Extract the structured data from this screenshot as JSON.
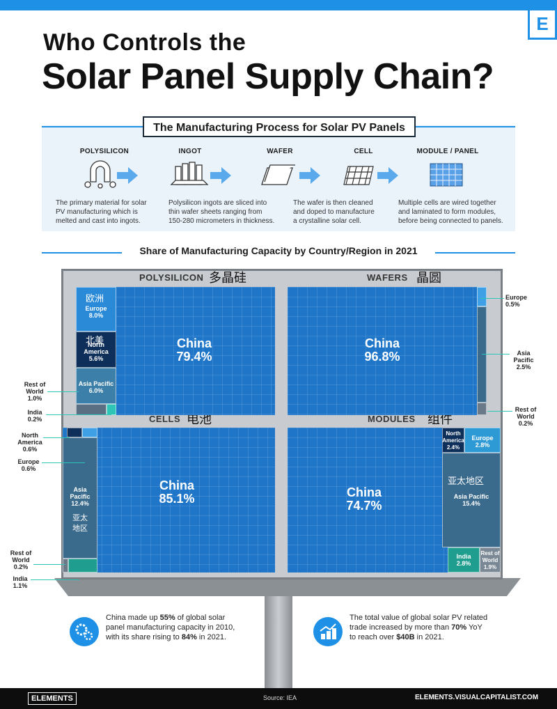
{
  "header": {
    "logo_letter": "E",
    "title_line1": "Who Controls the",
    "title_line2": "Solar Panel Supply Chain?"
  },
  "process": {
    "title": "The Manufacturing Process for Solar PV Panels",
    "steps": [
      {
        "label": "POLYSILICON",
        "desc1": "The primary material for solar",
        "desc2": "PV manufacturing which is",
        "desc3": "melted and cast into ingots."
      },
      {
        "label": "INGOT",
        "desc1": "Polysilicon ingots are sliced into",
        "desc2": "thin wafer sheets ranging from",
        "desc3": "150-280 micrometers in thickness."
      },
      {
        "label": "WAFER",
        "desc1": "The wafer is then cleaned",
        "desc2": "and doped to manufacture",
        "desc3": "a crystalline solar cell."
      },
      {
        "label": "CELL",
        "desc1": "",
        "desc2": "",
        "desc3": ""
      },
      {
        "label": "MODULE / PANEL",
        "desc1": "Multiple cells are wired together",
        "desc2": "and laminated to form modules,",
        "desc3": "before being connected to panels."
      }
    ]
  },
  "share_title": "Share of Manufacturing Capacity by Country/Region in 2021",
  "chart_data": [
    {
      "type": "treemap",
      "title": "POLYSILICON",
      "title_zh": "多晶硅",
      "items": [
        {
          "name": "China",
          "value": 79.4,
          "label": "79.4%"
        },
        {
          "name": "Europe",
          "value": 8.0,
          "label": "8.0%",
          "zh": "欧洲"
        },
        {
          "name": "North America",
          "value": 5.6,
          "label": "5.6%",
          "zh": "北美"
        },
        {
          "name": "Asia Pacific",
          "value": 6.0,
          "label": "6.0%"
        },
        {
          "name": "Rest of World",
          "value": 1.0,
          "label": "1.0%"
        },
        {
          "name": "India",
          "value": 0.2,
          "label": "0.2%"
        }
      ]
    },
    {
      "type": "treemap",
      "title": "WAFERS",
      "title_zh": "晶圆",
      "items": [
        {
          "name": "China",
          "value": 96.8,
          "label": "96.8%"
        },
        {
          "name": "Europe",
          "value": 0.5,
          "label": "0.5%"
        },
        {
          "name": "Asia Pacific",
          "value": 2.5,
          "label": "2.5%"
        },
        {
          "name": "Rest of World",
          "value": 0.2,
          "label": "0.2%"
        }
      ]
    },
    {
      "type": "treemap",
      "title": "CELLS",
      "title_zh": "电池",
      "items": [
        {
          "name": "China",
          "value": 85.1,
          "label": "85.1%"
        },
        {
          "name": "North America",
          "value": 0.6,
          "label": "0.6%"
        },
        {
          "name": "Europe",
          "value": 0.6,
          "label": "0.6%"
        },
        {
          "name": "Asia Pacific",
          "value": 12.4,
          "label": "12.4%",
          "zh": "亚太地区"
        },
        {
          "name": "Rest of World",
          "value": 0.2,
          "label": "0.2%"
        },
        {
          "name": "India",
          "value": 1.1,
          "label": "1.1%"
        }
      ]
    },
    {
      "type": "treemap",
      "title": "MODULES",
      "title_zh": "组件",
      "items": [
        {
          "name": "China",
          "value": 74.7,
          "label": "74.7%"
        },
        {
          "name": "North America",
          "value": 2.4,
          "label": "2.4%"
        },
        {
          "name": "Europe",
          "value": 2.8,
          "label": "2.8%"
        },
        {
          "name": "Asia Pacific",
          "value": 15.4,
          "label": "15.4%",
          "zh": "亚太地区"
        },
        {
          "name": "India",
          "value": 2.8,
          "label": "2.8%"
        },
        {
          "name": "Rest of World",
          "value": 1.9,
          "label": "1.9%"
        }
      ]
    }
  ],
  "labels": {
    "north_america_line1": "North",
    "north_america_line2": "America",
    "asia_line1": "Asia",
    "asia_line2": "Pacific",
    "rest_line1": "Rest of",
    "rest_line2": "World"
  },
  "facts": [
    {
      "pre": "China made up ",
      "b1": "55%",
      "mid": " of global solar panel manufacturing capacity in 2010, with its share rising to ",
      "b2": "84%",
      "post": " in 2021."
    },
    {
      "pre": "The total value of global solar PV related trade increased by more than ",
      "b1": "70%",
      "mid": " YoY to reach over ",
      "b2": "$40B",
      "post": " in 2021."
    }
  ],
  "footer": {
    "logo": "ELEMENTS",
    "source": "Source: IEA",
    "url": "ELEMENTS.VISUALCAPITALIST.COM"
  },
  "colors": {
    "accent": "#1e90e6",
    "china": "#1f76c9",
    "dark": "#0d2f5a",
    "teal": "#2ec4b6"
  }
}
